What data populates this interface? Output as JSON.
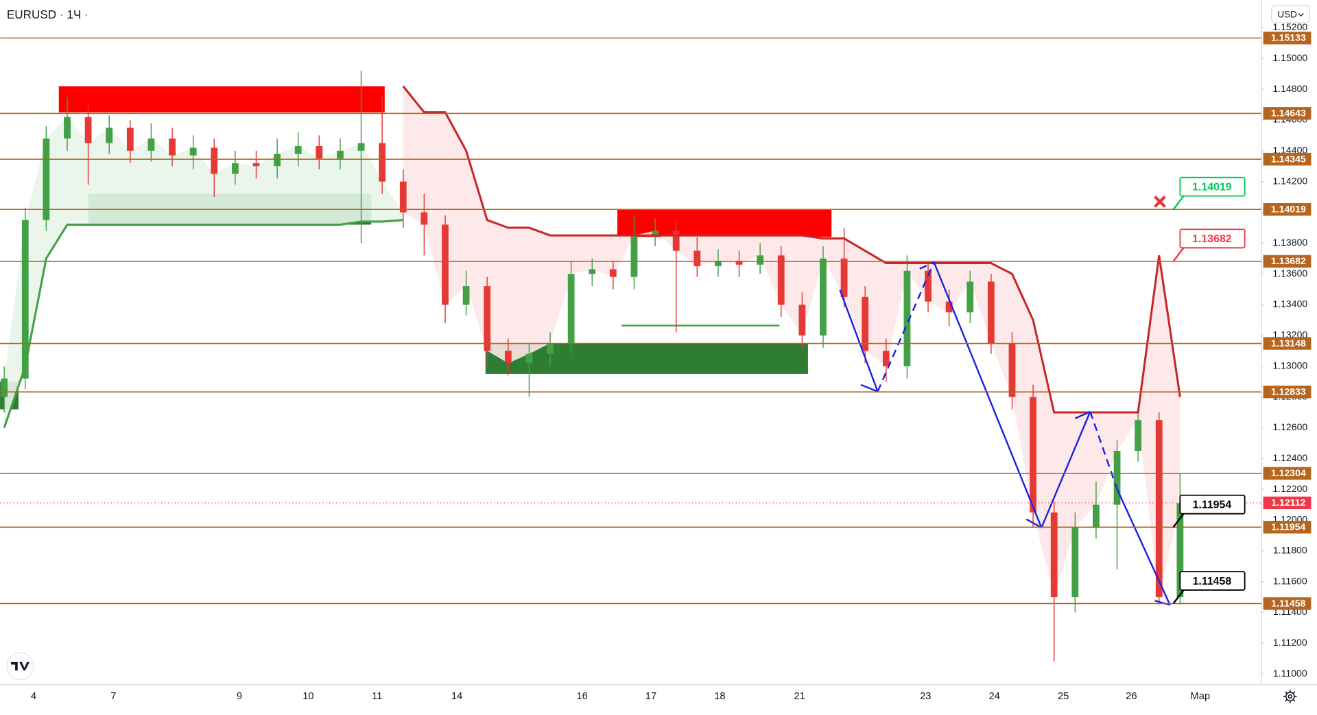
{
  "header": {
    "symbol": "EURUSD",
    "interval": "1Ч",
    "currency": "USD"
  },
  "chart_data": {
    "type": "candlestick",
    "x_labels": [
      "4",
      "7",
      "9",
      "10",
      "11",
      "14",
      "16",
      "17",
      "18",
      "21",
      "23",
      "24",
      "25",
      "26",
      "Мар"
    ],
    "open": [
      1.128,
      1.1292,
      1.1395,
      1.1448,
      1.1462,
      1.1445,
      1.1455,
      1.144,
      1.1448,
      1.1437,
      1.1442,
      1.1425,
      1.1432,
      1.143,
      1.1438,
      1.1443,
      1.1435,
      1.144,
      1.1445,
      1.142,
      1.14,
      1.1392,
      1.134,
      1.1352,
      1.131,
      1.1302,
      1.1308,
      1.1315,
      1.136,
      1.1363,
      1.1358,
      1.1385,
      1.1388,
      1.1375,
      1.1365,
      1.1368,
      1.1366,
      1.1372,
      1.134,
      1.132,
      1.137,
      1.1345,
      1.131,
      1.13,
      1.1362,
      1.1342,
      1.1335,
      1.1355,
      1.1315,
      1.128,
      1.1205,
      1.115,
      1.1195,
      1.121,
      1.1245,
      1.1265,
      1.115
    ],
    "high": [
      1.13,
      1.1403,
      1.1456,
      1.1475,
      1.147,
      1.1463,
      1.146,
      1.1458,
      1.1455,
      1.145,
      1.1448,
      1.144,
      1.144,
      1.1448,
      1.1452,
      1.145,
      1.1448,
      1.1492,
      1.1475,
      1.1428,
      1.1412,
      1.1398,
      1.1362,
      1.1358,
      1.1318,
      1.1315,
      1.1322,
      1.1368,
      1.137,
      1.1368,
      1.1398,
      1.1396,
      1.1394,
      1.1384,
      1.1376,
      1.1375,
      1.138,
      1.1378,
      1.1348,
      1.1378,
      1.139,
      1.1352,
      1.1318,
      1.1372,
      1.1368,
      1.135,
      1.1362,
      1.136,
      1.1322,
      1.1288,
      1.1212,
      1.1205,
      1.1225,
      1.1252,
      1.1272,
      1.127,
      1.123
    ],
    "low": [
      1.127,
      1.1285,
      1.1388,
      1.144,
      1.1418,
      1.1438,
      1.1432,
      1.1433,
      1.143,
      1.1428,
      1.141,
      1.1418,
      1.1422,
      1.1422,
      1.143,
      1.1428,
      1.1428,
      1.138,
      1.1412,
      1.139,
      1.1372,
      1.1328,
      1.1333,
      1.13,
      1.1294,
      1.128,
      1.13,
      1.1308,
      1.1352,
      1.135,
      1.135,
      1.1378,
      1.1322,
      1.1358,
      1.1358,
      1.1358,
      1.136,
      1.1332,
      1.1312,
      1.1312,
      1.1338,
      1.1302,
      1.129,
      1.1292,
      1.1335,
      1.1326,
      1.1328,
      1.1308,
      1.1272,
      1.1195,
      1.1108,
      1.114,
      1.1188,
      1.1168,
      1.1238,
      1.1145,
      1.1145
    ],
    "close": [
      1.1292,
      1.1395,
      1.1448,
      1.1462,
      1.1445,
      1.1455,
      1.144,
      1.1448,
      1.1437,
      1.1442,
      1.1425,
      1.1432,
      1.143,
      1.1438,
      1.1443,
      1.1435,
      1.144,
      1.1445,
      1.142,
      1.14,
      1.1392,
      1.134,
      1.1352,
      1.131,
      1.1302,
      1.1308,
      1.1315,
      1.136,
      1.1363,
      1.1358,
      1.1385,
      1.1388,
      1.1375,
      1.1365,
      1.1368,
      1.1366,
      1.1372,
      1.134,
      1.132,
      1.137,
      1.1345,
      1.131,
      1.13,
      1.1362,
      1.1342,
      1.1335,
      1.1355,
      1.1315,
      1.128,
      1.1205,
      1.115,
      1.1195,
      1.121,
      1.1245,
      1.1265,
      1.115,
      1.1211
    ],
    "up_color": "#43a047",
    "down_color": "#e53935",
    "ylim": [
      1.1093,
      1.1538
    ],
    "yticks": [
      {
        "value": 1.152,
        "label": "1.15200"
      },
      {
        "value": 1.15,
        "label": "1.15000"
      },
      {
        "value": 1.148,
        "label": "1.14800"
      },
      {
        "value": 1.146,
        "label": "1.14600"
      },
      {
        "value": 1.144,
        "label": "1.14400"
      },
      {
        "value": 1.142,
        "label": "1.14200"
      },
      {
        "value": 1.14,
        "label": "1.14000"
      },
      {
        "value": 1.138,
        "label": "1.13800"
      },
      {
        "value": 1.136,
        "label": "1.13600"
      },
      {
        "value": 1.134,
        "label": "1.13400"
      },
      {
        "value": 1.132,
        "label": "1.13200"
      },
      {
        "value": 1.13,
        "label": "1.13000"
      },
      {
        "value": 1.128,
        "label": "1.12800"
      },
      {
        "value": 1.126,
        "label": "1.12600"
      },
      {
        "value": 1.124,
        "label": "1.12400"
      },
      {
        "value": 1.122,
        "label": "1.12200"
      },
      {
        "value": 1.12,
        "label": "1.12000"
      },
      {
        "value": 1.118,
        "label": "1.11800"
      },
      {
        "value": 1.116,
        "label": "1.11600"
      },
      {
        "value": 1.114,
        "label": "1.11400"
      },
      {
        "value": 1.112,
        "label": "1.11200"
      },
      {
        "value": 1.11,
        "label": "1.11000"
      }
    ],
    "grid": false,
    "level_color": "#b5651d",
    "levels": [
      1.15133,
      1.14643,
      1.14345,
      1.14019,
      1.13682,
      1.13148,
      1.12833,
      1.12304,
      1.11954,
      1.11458
    ],
    "last_price": 1.12112,
    "last_price_color": "#f23645",
    "callouts": [
      {
        "value": 1.14019,
        "color": "#00c853"
      },
      {
        "value": 1.13682,
        "color": "#f23645"
      },
      {
        "value": 1.11954,
        "color": "#000000"
      },
      {
        "value": 1.11458,
        "color": "#000000"
      }
    ],
    "supertrend": [
      {
        "color": "#43a047",
        "fill": "#e8f5e9",
        "values": [
          1.126,
          1.13,
          1.137,
          1.1392,
          1.1392,
          1.1392,
          1.1392,
          1.1392,
          1.1392,
          1.1392,
          1.1392,
          1.1392,
          1.1392,
          1.1392,
          1.1392,
          1.1392,
          1.1392,
          1.1394,
          1.1394,
          1.1395,
          null,
          null,
          null,
          null,
          null,
          null,
          null,
          null,
          null,
          null,
          null,
          null,
          null,
          null,
          null,
          null,
          null,
          null,
          null,
          null,
          null,
          null,
          null,
          null,
          null,
          null,
          null,
          null,
          null,
          null,
          null,
          null,
          null,
          null,
          null,
          null,
          null
        ]
      },
      {
        "color": "#c62828",
        "fill": "#fde7e7",
        "values": [
          null,
          null,
          null,
          null,
          null,
          null,
          null,
          null,
          null,
          null,
          null,
          null,
          null,
          null,
          null,
          null,
          null,
          null,
          null,
          1.1482,
          1.1465,
          1.1465,
          1.144,
          1.1395,
          1.139,
          1.139,
          1.1385,
          1.1385,
          1.1385,
          1.1385,
          1.1385,
          1.1385,
          1.1385,
          1.1385,
          1.1385,
          1.1385,
          1.1385,
          1.1385,
          1.1385,
          1.1383,
          1.1383,
          1.1375,
          1.1367,
          1.1367,
          1.1367,
          1.1367,
          1.1367,
          1.1367,
          1.136,
          1.133,
          1.127,
          1.127,
          1.127,
          1.127,
          1.127,
          1.1372,
          1.128
        ]
      }
    ],
    "zones": [
      {
        "color": "#ff0000",
        "top": 1.1482,
        "bottom": 1.1465
      },
      {
        "color": "#2e7d32",
        "top": 1.1412,
        "bottom": 1.1392
      },
      {
        "color": "#ff0000",
        "top": 1.1402,
        "bottom": 1.1384
      },
      {
        "color": "#2e7d32",
        "top": 1.1315,
        "bottom": 1.1295
      },
      {
        "color": "#2e7d32",
        "top": 1.129,
        "bottom": 1.1272
      },
      {
        "color": "#43a047",
        "top": 1.1327,
        "bottom": 1.1326
      }
    ]
  }
}
